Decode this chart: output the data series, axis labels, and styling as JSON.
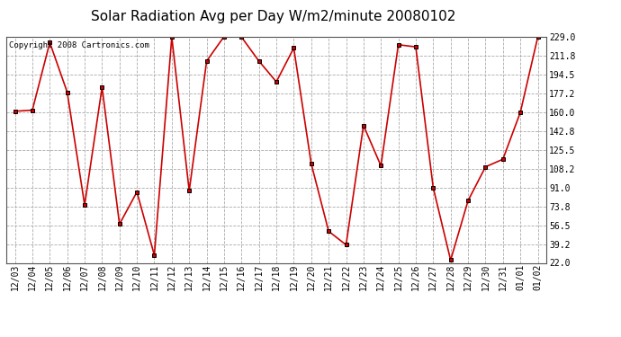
{
  "title": "Solar Radiation Avg per Day W/m2/minute 20080102",
  "copyright": "Copyright 2008 Cartronics.com",
  "labels": [
    "12/03",
    "12/04",
    "12/05",
    "12/06",
    "12/07",
    "12/08",
    "12/09",
    "12/10",
    "12/11",
    "12/12",
    "12/13",
    "12/14",
    "12/15",
    "12/16",
    "12/17",
    "12/18",
    "12/19",
    "12/20",
    "12/21",
    "12/22",
    "12/23",
    "12/24",
    "12/25",
    "12/26",
    "12/27",
    "12/28",
    "12/29",
    "12/30",
    "12/31",
    "01/01",
    "01/02"
  ],
  "values": [
    161.0,
    162.0,
    224.0,
    178.5,
    75.0,
    183.0,
    57.5,
    87.0,
    29.0,
    229.0,
    88.0,
    207.0,
    229.5,
    229.0,
    207.0,
    188.0,
    219.0,
    113.0,
    51.0,
    38.5,
    148.0,
    111.0,
    222.0,
    220.0,
    91.0,
    24.5,
    79.0,
    110.0,
    117.0,
    160.0,
    229.0
  ],
  "ymin": 22.0,
  "ymax": 229.0,
  "yticks": [
    22.0,
    39.2,
    56.5,
    73.8,
    91.0,
    108.2,
    125.5,
    142.8,
    160.0,
    177.2,
    194.5,
    211.8,
    229.0
  ],
  "line_color": "#cc0000",
  "marker": "s",
  "marker_size": 2.5,
  "background_color": "#ffffff",
  "grid_color": "#aaaaaa",
  "title_fontsize": 11,
  "tick_fontsize": 7,
  "copyright_fontsize": 6.5
}
